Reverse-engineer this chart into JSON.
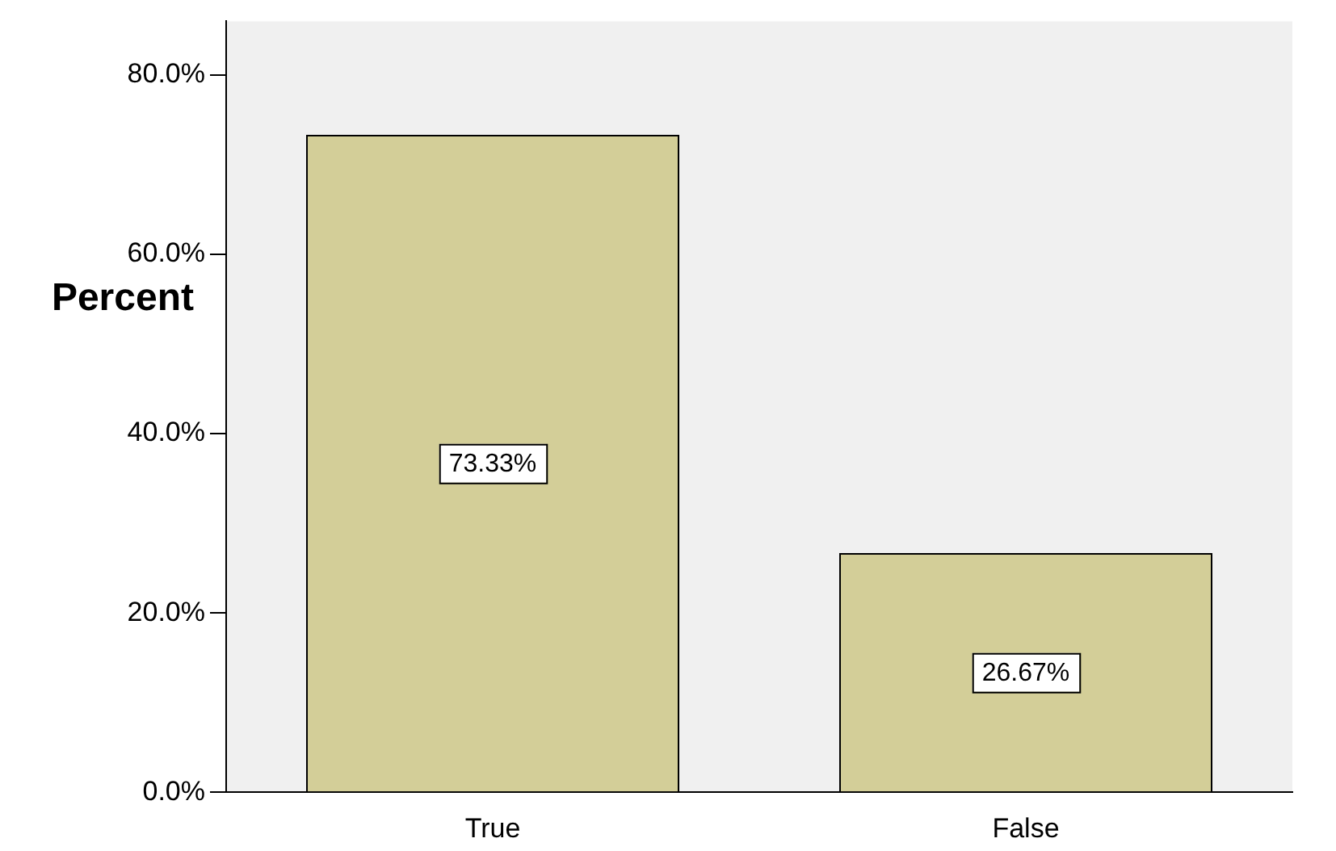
{
  "chart_data": {
    "type": "bar",
    "ylabel": "Percent",
    "categories": [
      "True",
      "False"
    ],
    "values": [
      73.33,
      26.67
    ],
    "value_labels": [
      "73.33%",
      "26.67%"
    ],
    "color": "#d3ce98",
    "ylim": [
      0,
      86
    ],
    "yticks": [
      {
        "value": 0,
        "label": "0.0%"
      },
      {
        "value": 20,
        "label": "20.0%"
      },
      {
        "value": 40,
        "label": "40.0%"
      },
      {
        "value": 60,
        "label": "60.0%"
      },
      {
        "value": 80,
        "label": "80.0%"
      }
    ],
    "grid": false,
    "legend": false
  }
}
